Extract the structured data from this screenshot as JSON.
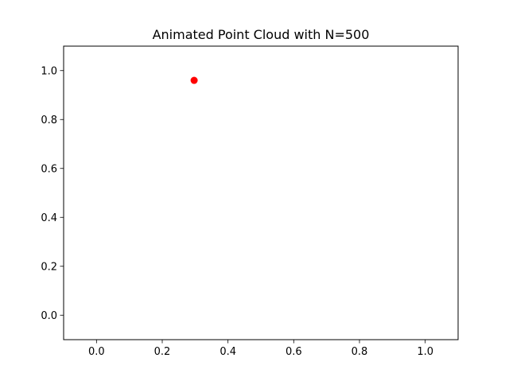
{
  "chart_data": {
    "type": "scatter",
    "title": "Animated Point Cloud with N=500",
    "xlabel": "",
    "ylabel": "",
    "xlim": [
      -0.1,
      1.1
    ],
    "ylim": [
      -0.1,
      1.1
    ],
    "xticks": [
      0.0,
      0.2,
      0.4,
      0.6,
      0.8,
      1.0
    ],
    "yticks": [
      0.0,
      0.2,
      0.4,
      0.6,
      0.8,
      1.0
    ],
    "xtick_labels": [
      "0.0",
      "0.2",
      "0.4",
      "0.6",
      "0.8",
      "1.0"
    ],
    "ytick_labels": [
      "0.0",
      "0.2",
      "0.4",
      "0.6",
      "0.8",
      "1.0"
    ],
    "grid": false,
    "legend": "none",
    "series": [
      {
        "color": "#ff0000",
        "points": [
          {
            "x": 0.297,
            "y": 0.96
          }
        ]
      }
    ]
  }
}
